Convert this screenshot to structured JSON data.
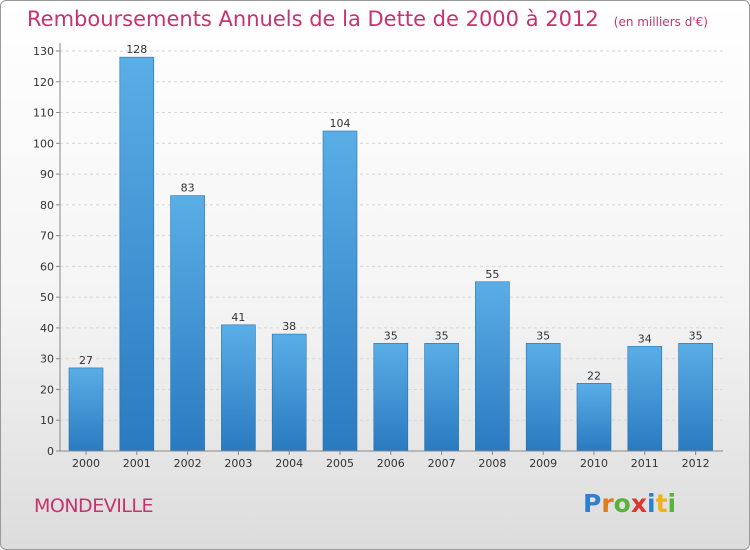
{
  "header": {
    "title": "Remboursements Annuels de la Dette de 2000 à 2012",
    "unit": "(en milliers d'€)"
  },
  "footer": {
    "town": "MONDEVILLE",
    "logo_letters": [
      {
        "ch": "P",
        "color": "#2f7fd0"
      },
      {
        "ch": "r",
        "color": "#e07a1e"
      },
      {
        "ch": "o",
        "color": "#5ab23a"
      },
      {
        "ch": "x",
        "color": "#e0352a"
      },
      {
        "ch": "i",
        "color": "#2f7fd0"
      },
      {
        "ch": "t",
        "color": "#f0b21a"
      },
      {
        "ch": "i",
        "color": "#5ab23a"
      }
    ]
  },
  "colors": {
    "title": "#c8326e",
    "bar_light": "#5aaee6",
    "bar_dark": "#2a7ac0",
    "axis": "#888888",
    "grid": "#d8d8d8"
  },
  "chart_data": {
    "type": "bar",
    "categories": [
      "2000",
      "2001",
      "2002",
      "2003",
      "2004",
      "2005",
      "2006",
      "2007",
      "2008",
      "2009",
      "2010",
      "2011",
      "2012"
    ],
    "values": [
      27,
      128,
      83,
      41,
      38,
      104,
      35,
      35,
      55,
      35,
      22,
      34,
      35
    ],
    "title": "Remboursements Annuels de la Dette de 2000 à 2012",
    "xlabel": "",
    "ylabel": "",
    "ylim": [
      0,
      130
    ],
    "yticks": [
      0,
      10,
      20,
      30,
      40,
      50,
      60,
      70,
      80,
      90,
      100,
      110,
      120,
      130
    ],
    "grid": true,
    "legend": "none"
  }
}
